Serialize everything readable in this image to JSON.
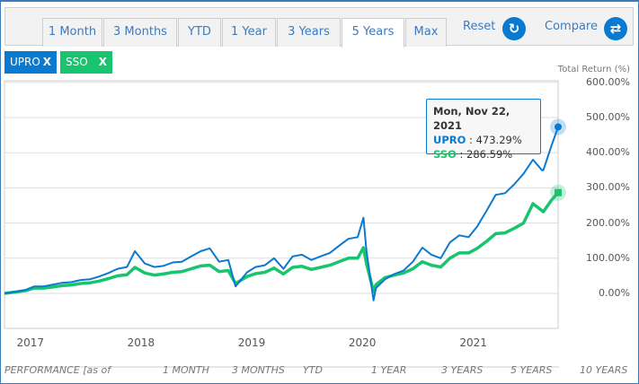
{
  "tabs": [
    {
      "label": "1 Month"
    },
    {
      "label": "3 Months"
    },
    {
      "label": "YTD"
    },
    {
      "label": "1 Year"
    },
    {
      "label": "3 Years"
    },
    {
      "label": "5 Years",
      "active": true
    },
    {
      "label": "Max"
    }
  ],
  "actions": {
    "reset": "Reset",
    "compare": "Compare",
    "reset_icon": "refresh-icon",
    "compare_icon": "swap-arrows-icon"
  },
  "tickers": [
    {
      "label": "UPRO",
      "remove": "X",
      "color": "#0a7ad0"
    },
    {
      "label": "SSO",
      "remove": "X",
      "color": "#19c46f"
    }
  ],
  "performance_header": {
    "title": "PERFORMANCE [as of",
    "cols": [
      "1 MONTH",
      "3 MONTHS",
      "YTD",
      "1 YEAR",
      "3 YEARS",
      "5 YEARS",
      "10 YEARS"
    ]
  },
  "tooltip": {
    "date": "Mon, Nov 22, 2021",
    "rows": [
      {
        "name": "UPRO",
        "value": "473.29%"
      },
      {
        "name": "SSO",
        "value": "286.59%"
      }
    ]
  },
  "chart_data": {
    "type": "line",
    "ylabel": "Total Return (%)",
    "ylim": [
      -100,
      600
    ],
    "yticks": [
      "0.00%",
      "100.00%",
      "200.00%",
      "300.00%",
      "400.00%",
      "500.00%",
      "600.00%"
    ],
    "yvals": [
      0,
      100,
      200,
      300,
      400,
      500,
      600
    ],
    "xticks": [
      "2017",
      "2018",
      "2019",
      "2020",
      "2021"
    ],
    "xlim": [
      "2016-11-22",
      "2021-11-22"
    ],
    "grid": true,
    "series": [
      {
        "name": "UPRO",
        "color": "#0a7ad0",
        "points": [
          [
            "2016-11-22",
            0
          ],
          [
            "2016-12-31",
            5
          ],
          [
            "2017-01-31",
            10
          ],
          [
            "2017-02-28",
            20
          ],
          [
            "2017-03-31",
            20
          ],
          [
            "2017-04-30",
            25
          ],
          [
            "2017-05-31",
            30
          ],
          [
            "2017-06-30",
            32
          ],
          [
            "2017-07-31",
            38
          ],
          [
            "2017-08-31",
            40
          ],
          [
            "2017-09-30",
            48
          ],
          [
            "2017-10-31",
            58
          ],
          [
            "2017-11-30",
            70
          ],
          [
            "2017-12-31",
            75
          ],
          [
            "2018-01-26",
            120
          ],
          [
            "2018-02-28",
            85
          ],
          [
            "2018-03-31",
            75
          ],
          [
            "2018-04-30",
            78
          ],
          [
            "2018-05-31",
            88
          ],
          [
            "2018-06-30",
            90
          ],
          [
            "2018-07-31",
            105
          ],
          [
            "2018-08-31",
            120
          ],
          [
            "2018-09-30",
            128
          ],
          [
            "2018-10-31",
            90
          ],
          [
            "2018-11-30",
            95
          ],
          [
            "2018-12-24",
            20
          ],
          [
            "2019-01-31",
            60
          ],
          [
            "2019-02-28",
            75
          ],
          [
            "2019-03-31",
            80
          ],
          [
            "2019-04-30",
            100
          ],
          [
            "2019-05-31",
            70
          ],
          [
            "2019-06-30",
            105
          ],
          [
            "2019-07-31",
            110
          ],
          [
            "2019-08-31",
            95
          ],
          [
            "2019-09-30",
            105
          ],
          [
            "2019-10-31",
            115
          ],
          [
            "2019-11-30",
            135
          ],
          [
            "2019-12-31",
            155
          ],
          [
            "2020-01-31",
            160
          ],
          [
            "2020-02-19",
            215
          ],
          [
            "2020-02-29",
            120
          ],
          [
            "2020-03-23",
            -20
          ],
          [
            "2020-03-31",
            15
          ],
          [
            "2020-04-30",
            40
          ],
          [
            "2020-05-31",
            55
          ],
          [
            "2020-06-30",
            65
          ],
          [
            "2020-07-31",
            90
          ],
          [
            "2020-08-31",
            130
          ],
          [
            "2020-09-30",
            110
          ],
          [
            "2020-10-31",
            100
          ],
          [
            "2020-11-30",
            145
          ],
          [
            "2020-12-31",
            165
          ],
          [
            "2021-01-31",
            160
          ],
          [
            "2021-02-28",
            190
          ],
          [
            "2021-03-31",
            235
          ],
          [
            "2021-04-30",
            280
          ],
          [
            "2021-05-31",
            285
          ],
          [
            "2021-06-30",
            310
          ],
          [
            "2021-07-31",
            340
          ],
          [
            "2021-08-31",
            380
          ],
          [
            "2021-09-30",
            350
          ],
          [
            "2021-10-04",
            350
          ],
          [
            "2021-10-31",
            420
          ],
          [
            "2021-11-22",
            473.29
          ]
        ]
      },
      {
        "name": "SSO",
        "color": "#19c46f",
        "points": [
          [
            "2016-11-22",
            0
          ],
          [
            "2016-12-31",
            4
          ],
          [
            "2017-01-31",
            8
          ],
          [
            "2017-02-28",
            15
          ],
          [
            "2017-03-31",
            15
          ],
          [
            "2017-04-30",
            18
          ],
          [
            "2017-05-31",
            22
          ],
          [
            "2017-06-30",
            24
          ],
          [
            "2017-07-31",
            28
          ],
          [
            "2017-08-31",
            30
          ],
          [
            "2017-09-30",
            35
          ],
          [
            "2017-10-31",
            42
          ],
          [
            "2017-11-30",
            50
          ],
          [
            "2017-12-31",
            53
          ],
          [
            "2018-01-26",
            74
          ],
          [
            "2018-02-28",
            58
          ],
          [
            "2018-03-31",
            52
          ],
          [
            "2018-04-30",
            55
          ],
          [
            "2018-05-31",
            60
          ],
          [
            "2018-06-30",
            62
          ],
          [
            "2018-07-31",
            70
          ],
          [
            "2018-08-31",
            78
          ],
          [
            "2018-09-30",
            80
          ],
          [
            "2018-10-31",
            62
          ],
          [
            "2018-11-30",
            65
          ],
          [
            "2018-12-24",
            28
          ],
          [
            "2019-01-31",
            48
          ],
          [
            "2019-02-28",
            56
          ],
          [
            "2019-03-31",
            60
          ],
          [
            "2019-04-30",
            72
          ],
          [
            "2019-05-31",
            55
          ],
          [
            "2019-06-30",
            74
          ],
          [
            "2019-07-31",
            77
          ],
          [
            "2019-08-31",
            68
          ],
          [
            "2019-09-30",
            74
          ],
          [
            "2019-10-31",
            80
          ],
          [
            "2019-11-30",
            90
          ],
          [
            "2019-12-31",
            100
          ],
          [
            "2020-01-31",
            100
          ],
          [
            "2020-02-19",
            130
          ],
          [
            "2020-02-29",
            85
          ],
          [
            "2020-03-23",
            5
          ],
          [
            "2020-03-31",
            25
          ],
          [
            "2020-04-30",
            45
          ],
          [
            "2020-05-31",
            52
          ],
          [
            "2020-06-30",
            58
          ],
          [
            "2020-07-31",
            70
          ],
          [
            "2020-08-31",
            90
          ],
          [
            "2020-09-30",
            80
          ],
          [
            "2020-10-31",
            75
          ],
          [
            "2020-11-30",
            100
          ],
          [
            "2020-12-31",
            115
          ],
          [
            "2021-01-31",
            115
          ],
          [
            "2021-02-28",
            128
          ],
          [
            "2021-03-31",
            148
          ],
          [
            "2021-04-30",
            170
          ],
          [
            "2021-05-31",
            172
          ],
          [
            "2021-06-30",
            185
          ],
          [
            "2021-07-31",
            200
          ],
          [
            "2021-08-31",
            255
          ],
          [
            "2021-09-30",
            235
          ],
          [
            "2021-10-04",
            232
          ],
          [
            "2021-10-31",
            265
          ],
          [
            "2021-11-22",
            286.59
          ]
        ]
      }
    ]
  }
}
